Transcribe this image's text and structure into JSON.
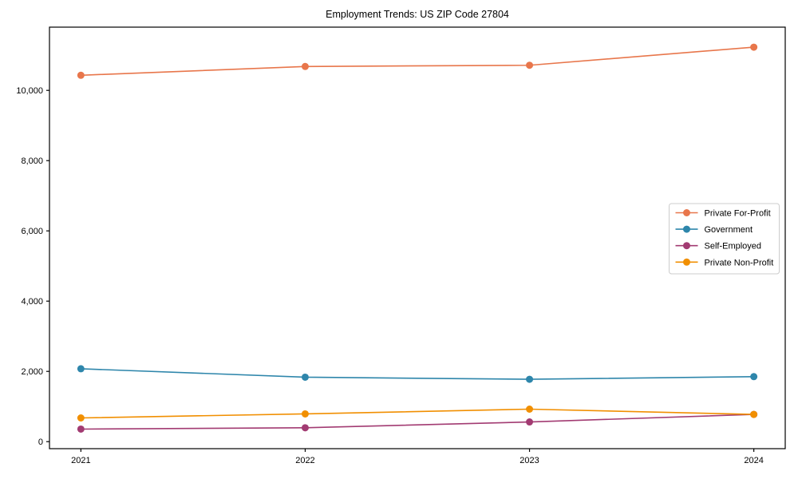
{
  "figure": {
    "title": "Employment Trends: US ZIP Code 27804"
  },
  "chart_data": {
    "type": "line",
    "title": "Employment Trends: US ZIP Code 27804",
    "x": [
      2021,
      2022,
      2023,
      2024
    ],
    "x_tick_labels": [
      "2021",
      "2022",
      "2023",
      "2024"
    ],
    "series": [
      {
        "name": "Private For-Profit",
        "color": "#E8764B",
        "values": [
          10430,
          10680,
          10715,
          11230
        ]
      },
      {
        "name": "Government",
        "color": "#2E86AB",
        "values": [
          2075,
          1835,
          1775,
          1850
        ]
      },
      {
        "name": "Self-Employed",
        "color": "#A23B72",
        "values": [
          357,
          395,
          560,
          775
        ]
      },
      {
        "name": "Private Non-Profit",
        "color": "#F18F01",
        "values": [
          675,
          790,
          925,
          775
        ]
      }
    ],
    "xlabel": "",
    "ylabel": "",
    "yticks": [
      0,
      2000,
      4000,
      6000,
      8000,
      10000
    ],
    "ytick_labels": [
      "0",
      "2,000",
      "4,000",
      "6,000",
      "8,000",
      "10,000"
    ],
    "ylim": [
      -200,
      11800
    ],
    "xlim": [
      2020.86,
      2024.14
    ],
    "grid": false,
    "legend_position": "center-right",
    "marker": "circle",
    "colors": {
      "background": "#ffffff",
      "axis": "#000000",
      "legend_border": "#cccccc"
    }
  }
}
